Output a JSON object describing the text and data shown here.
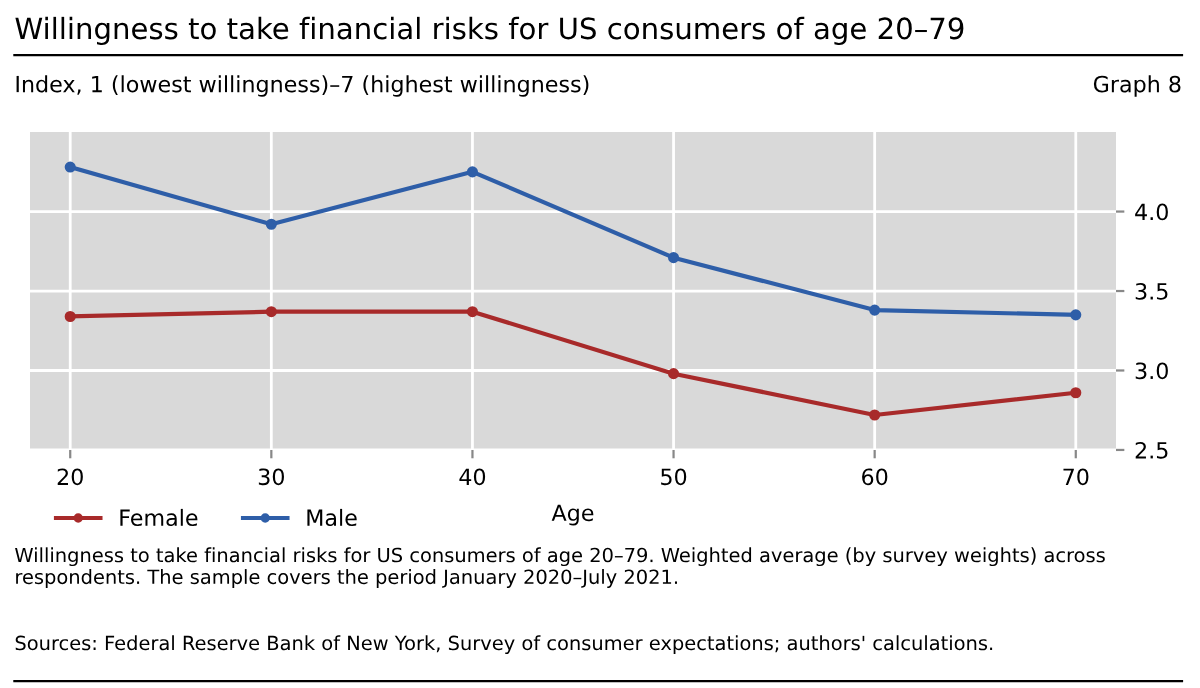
{
  "chart_data": {
    "type": "line",
    "title": "Willingness to take financial risks for US consumers of age 20–79",
    "ylabel": "Index, 1 (lowest willingness)–7 (highest willingness)",
    "xlabel": "Age",
    "x": [
      20,
      30,
      40,
      50,
      60,
      70
    ],
    "series": [
      {
        "name": "Female",
        "color": "#a82a2a",
        "values": [
          3.34,
          3.37,
          3.37,
          2.98,
          2.72,
          2.86
        ]
      },
      {
        "name": "Male",
        "color": "#2e5ea8",
        "values": [
          4.28,
          3.92,
          4.25,
          3.71,
          3.38,
          3.35
        ]
      }
    ],
    "xlim": [
      18,
      72
    ],
    "xticks": [
      20,
      30,
      40,
      50,
      60,
      70
    ],
    "ylim": [
      2.5,
      4.5
    ],
    "yticks": [
      {
        "value": 2.5,
        "label": "2.5"
      },
      {
        "value": 3.0,
        "label": "3.0"
      },
      {
        "value": 3.5,
        "label": "3.5"
      },
      {
        "value": 4.0,
        "label": "4.0"
      }
    ],
    "grid": true,
    "legend": "bottom left",
    "marker": "circle",
    "line_style": "solid",
    "annotations": [
      "Graph 8",
      "Willingness to take financial risks for US consumers of age 20–79. Weighted average (by survey weights) across respondents. The sample covers the period January 2020–July 2021.",
      "Sources: Federal Reserve Bank of New York, Survey of consumer expectations; authors' calculations."
    ]
  }
}
